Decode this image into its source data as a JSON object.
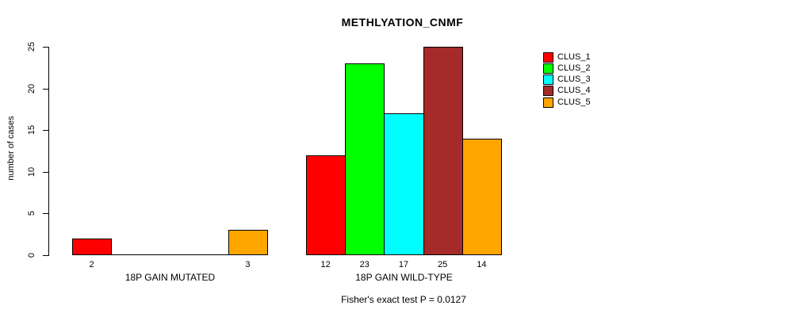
{
  "title": "METHLYATION_CNMF",
  "y_axis": {
    "label": "number of cases",
    "ticks": [
      0,
      5,
      10,
      15,
      20,
      25
    ]
  },
  "footer": "Fisher's exact test P = 0.0127",
  "chart_data": {
    "type": "bar",
    "title": "METHLYATION_CNMF",
    "ylabel": "number of cases",
    "xlabel": "",
    "ylim": [
      0,
      25
    ],
    "yticks": [
      0,
      5,
      10,
      15,
      20,
      25
    ],
    "categories": [
      "18P GAIN MUTATED",
      "18P GAIN WILD-TYPE"
    ],
    "series": [
      {
        "name": "CLUS_1",
        "color": "#FF0000",
        "values": [
          2,
          12
        ]
      },
      {
        "name": "CLUS_2",
        "color": "#00FF00",
        "values": [
          0,
          23
        ]
      },
      {
        "name": "CLUS_3",
        "color": "#00FFFF",
        "values": [
          0,
          17
        ]
      },
      {
        "name": "CLUS_4",
        "color": "#A52A2A",
        "values": [
          0,
          25
        ]
      },
      {
        "name": "CLUS_5",
        "color": "#FFA500",
        "values": [
          3,
          14
        ]
      }
    ],
    "bar_value_labels_shown": true,
    "zero_bars_drawn_as_baseline": true,
    "legend_position": "right-top",
    "legend_entries": [
      "CLUS_1",
      "CLUS_2",
      "CLUS_3",
      "CLUS_4",
      "CLUS_5"
    ],
    "annotation": "Fisher's exact test P = 0.0127",
    "grid": false,
    "background": "#FFFFFF",
    "axis_color": "#000000"
  }
}
